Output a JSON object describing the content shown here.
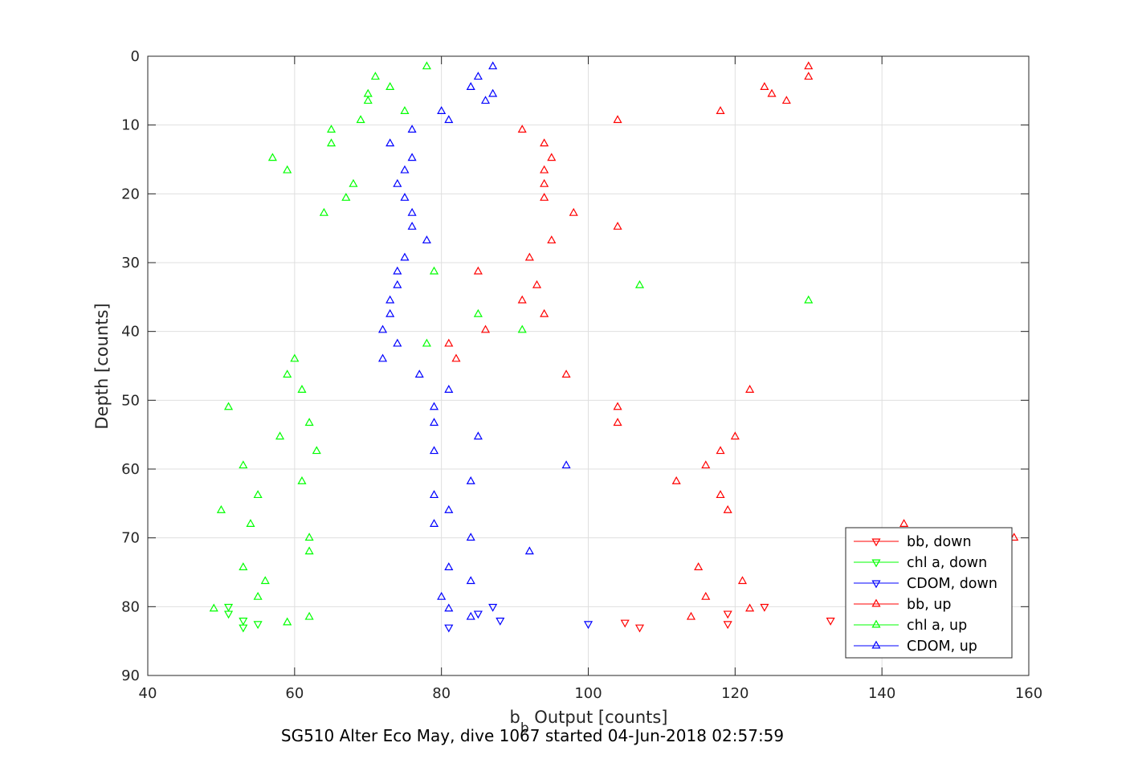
{
  "chart_data": {
    "type": "scatter",
    "xlabel_main": "b",
    "xlabel_sub": "b",
    "xlabel_rest": " Output [counts]",
    "ylabel": "Depth [counts]",
    "caption": "SG510 Alter Eco May, dive 1067 started 04-Jun-2018 02:57:59",
    "xlim": [
      40,
      160
    ],
    "ylim": [
      0,
      90
    ],
    "y_reversed": true,
    "grid": true,
    "legend_position": "bottom-right",
    "x_ticks": [
      "40",
      "60",
      "80",
      "100",
      "120",
      "140",
      "160"
    ],
    "y_ticks": [
      "0",
      "10",
      "20",
      "30",
      "40",
      "50",
      "60",
      "70",
      "80",
      "90"
    ],
    "series": [
      {
        "name": "bb, down",
        "color": "#ff0000",
        "marker": "triangle-down",
        "points": [
          [
            119,
            81
          ],
          [
            124,
            80
          ],
          [
            133,
            82
          ],
          [
            119,
            82.5
          ],
          [
            105,
            82.3
          ],
          [
            107,
            83
          ]
        ]
      },
      {
        "name": "chl a, down",
        "color": "#00ff00",
        "marker": "triangle-down",
        "points": [
          [
            51,
            80
          ],
          [
            51,
            81
          ],
          [
            53,
            82
          ],
          [
            55,
            82.5
          ],
          [
            53,
            83
          ]
        ]
      },
      {
        "name": "CDOM, down",
        "color": "#0000ff",
        "marker": "triangle-down",
        "points": [
          [
            87,
            80
          ],
          [
            85,
            81
          ],
          [
            88,
            82
          ],
          [
            100,
            82.5
          ],
          [
            81,
            83
          ]
        ]
      },
      {
        "name": "bb, up",
        "color": "#ff0000",
        "marker": "triangle-up",
        "points": [
          [
            130,
            1.5
          ],
          [
            130,
            3
          ],
          [
            124,
            4.5
          ],
          [
            125,
            5.5
          ],
          [
            127,
            6.5
          ],
          [
            118,
            8
          ],
          [
            104,
            9.3
          ],
          [
            91,
            10.7
          ],
          [
            94,
            12.7
          ],
          [
            95,
            14.8
          ],
          [
            94,
            16.6
          ],
          [
            94,
            18.6
          ],
          [
            94,
            20.6
          ],
          [
            98,
            22.8
          ],
          [
            104,
            24.8
          ],
          [
            95,
            26.8
          ],
          [
            92,
            29.3
          ],
          [
            85,
            31.3
          ],
          [
            93,
            33.3
          ],
          [
            91,
            35.5
          ],
          [
            94,
            37.5
          ],
          [
            86,
            39.8
          ],
          [
            81,
            41.8
          ],
          [
            82,
            44
          ],
          [
            97,
            46.3
          ],
          [
            122,
            48.5
          ],
          [
            104,
            51
          ],
          [
            104,
            53.3
          ],
          [
            120,
            55.3
          ],
          [
            118,
            57.4
          ],
          [
            116,
            59.5
          ],
          [
            112,
            61.8
          ],
          [
            118,
            63.8
          ],
          [
            119,
            66
          ],
          [
            143,
            68
          ],
          [
            158,
            70
          ],
          [
            115,
            74.3
          ],
          [
            121,
            76.3
          ],
          [
            116,
            78.6
          ],
          [
            122,
            80.3
          ],
          [
            114,
            81.5
          ]
        ]
      },
      {
        "name": "chl a, up",
        "color": "#00ff00",
        "marker": "triangle-up",
        "points": [
          [
            78,
            1.5
          ],
          [
            71,
            3
          ],
          [
            73,
            4.5
          ],
          [
            70,
            5.5
          ],
          [
            70,
            6.5
          ],
          [
            75,
            8
          ],
          [
            69,
            9.3
          ],
          [
            65,
            10.7
          ],
          [
            65,
            12.7
          ],
          [
            57,
            14.8
          ],
          [
            59,
            16.6
          ],
          [
            68,
            18.6
          ],
          [
            67,
            20.6
          ],
          [
            64,
            22.8
          ],
          [
            79,
            31.3
          ],
          [
            107,
            33.3
          ],
          [
            130,
            35.5
          ],
          [
            85,
            37.5
          ],
          [
            91,
            39.8
          ],
          [
            78,
            41.8
          ],
          [
            60,
            44
          ],
          [
            59,
            46.3
          ],
          [
            61,
            48.5
          ],
          [
            51,
            51
          ],
          [
            62,
            53.3
          ],
          [
            58,
            55.3
          ],
          [
            63,
            57.4
          ],
          [
            53,
            59.5
          ],
          [
            61,
            61.8
          ],
          [
            55,
            63.8
          ],
          [
            50,
            66
          ],
          [
            54,
            68
          ],
          [
            62,
            70
          ],
          [
            62,
            72
          ],
          [
            53,
            74.3
          ],
          [
            56,
            76.3
          ],
          [
            55,
            78.6
          ],
          [
            49,
            80.3
          ],
          [
            62,
            81.5
          ],
          [
            59,
            82.3
          ]
        ]
      },
      {
        "name": "CDOM, up",
        "color": "#0000ff",
        "marker": "triangle-up",
        "points": [
          [
            87,
            1.5
          ],
          [
            85,
            3
          ],
          [
            84,
            4.5
          ],
          [
            87,
            5.5
          ],
          [
            86,
            6.5
          ],
          [
            80,
            8
          ],
          [
            81,
            9.3
          ],
          [
            76,
            10.7
          ],
          [
            73,
            12.7
          ],
          [
            76,
            14.8
          ],
          [
            75,
            16.6
          ],
          [
            74,
            18.6
          ],
          [
            75,
            20.6
          ],
          [
            76,
            22.8
          ],
          [
            76,
            24.8
          ],
          [
            78,
            26.8
          ],
          [
            75,
            29.3
          ],
          [
            74,
            31.3
          ],
          [
            74,
            33.3
          ],
          [
            73,
            35.5
          ],
          [
            73,
            37.5
          ],
          [
            72,
            39.8
          ],
          [
            74,
            41.8
          ],
          [
            72,
            44
          ],
          [
            77,
            46.3
          ],
          [
            81,
            48.5
          ],
          [
            79,
            51
          ],
          [
            79,
            53.3
          ],
          [
            85,
            55.3
          ],
          [
            79,
            57.4
          ],
          [
            97,
            59.5
          ],
          [
            84,
            61.8
          ],
          [
            79,
            63.8
          ],
          [
            81,
            66
          ],
          [
            79,
            68
          ],
          [
            84,
            70
          ],
          [
            92,
            72
          ],
          [
            81,
            74.3
          ],
          [
            84,
            76.3
          ],
          [
            80,
            78.6
          ],
          [
            81,
            80.3
          ],
          [
            84,
            81.5
          ]
        ]
      }
    ]
  }
}
